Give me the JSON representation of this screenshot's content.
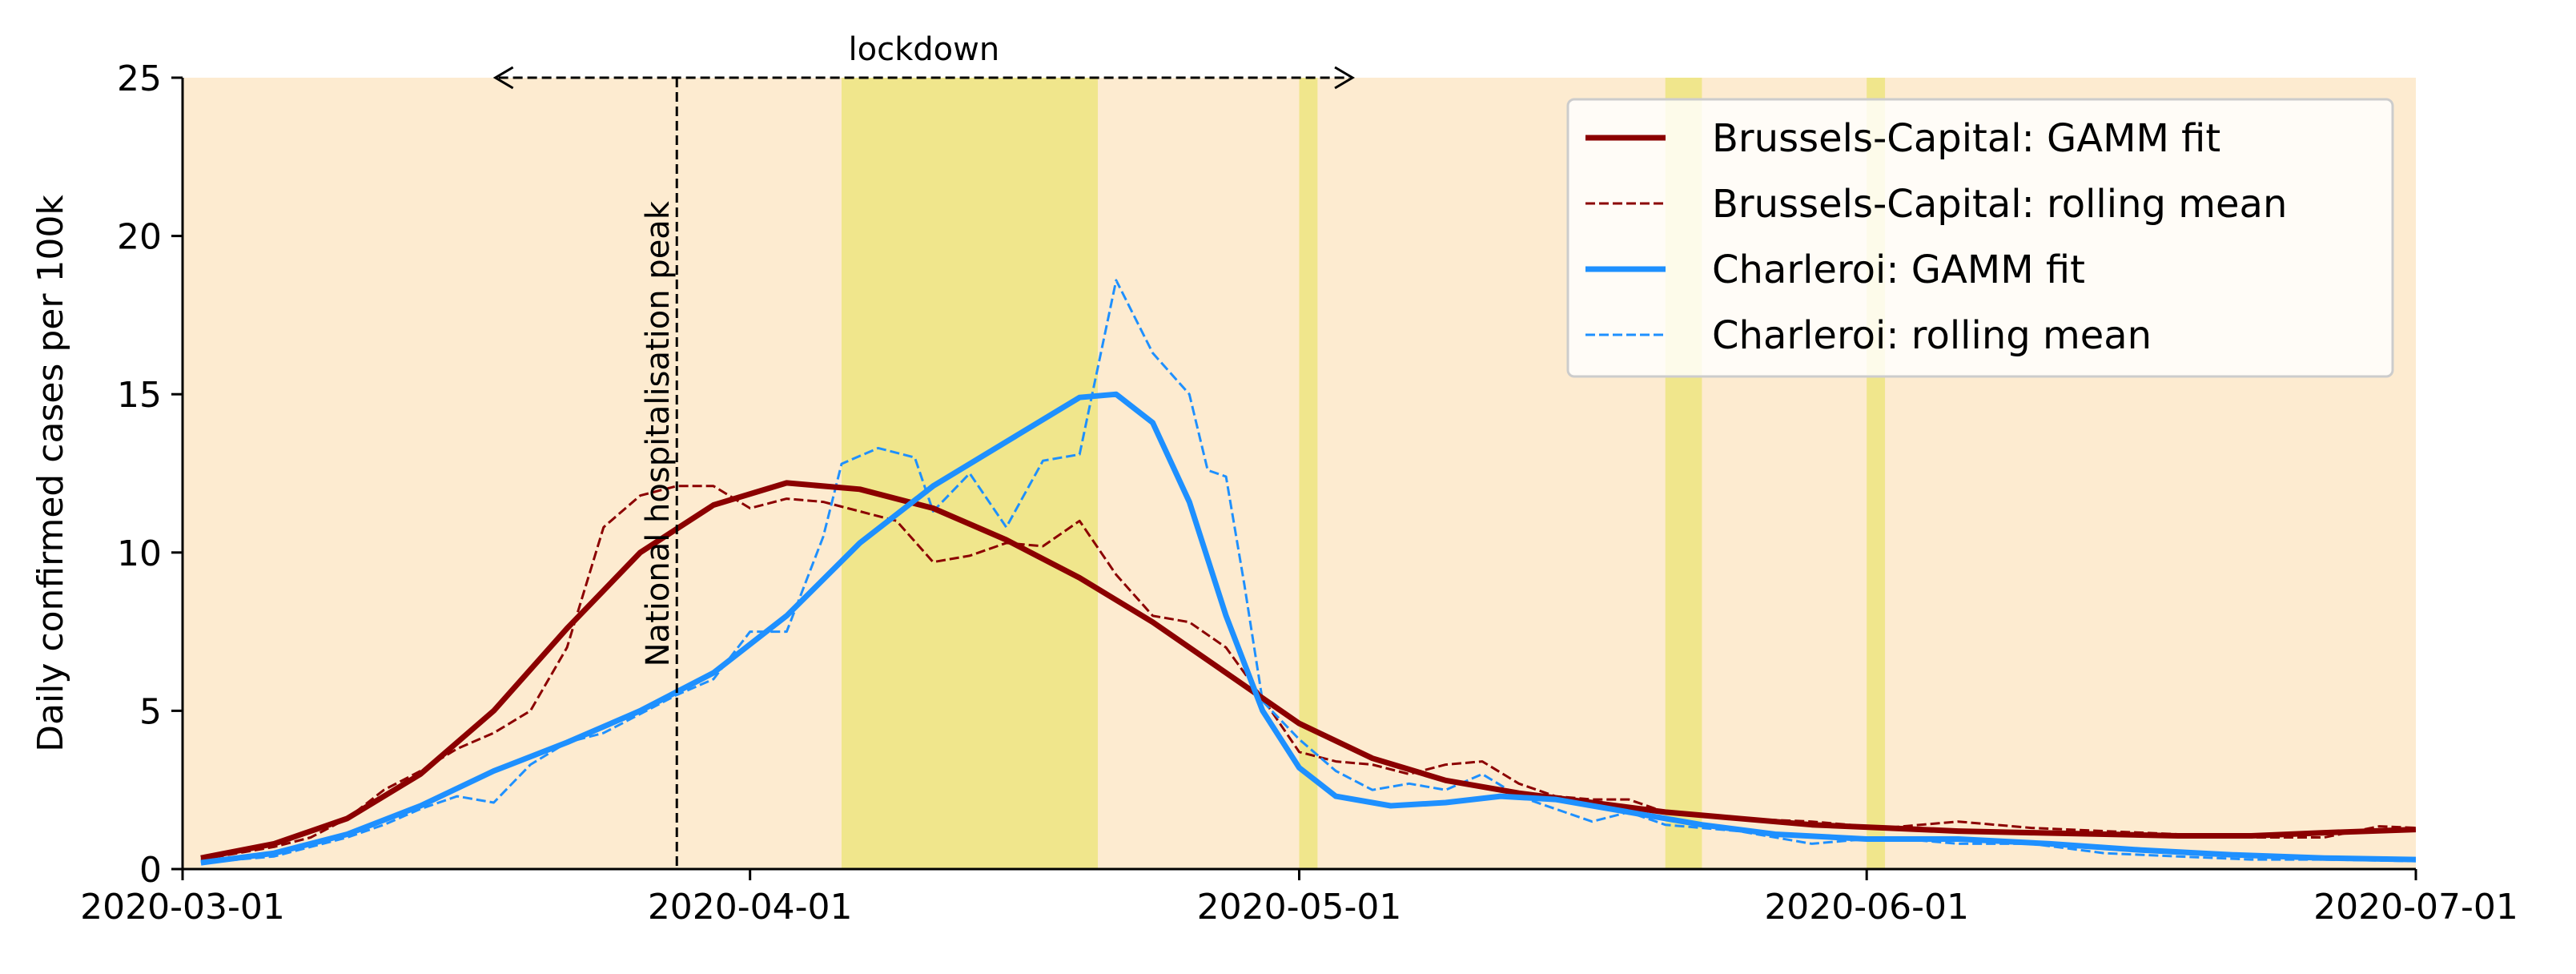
{
  "chart_data": {
    "type": "line",
    "title": "",
    "xlabel": "",
    "ylabel": "Daily confirmed cases per 100k",
    "x_range": [
      "2020-03-01",
      "2020-07-01"
    ],
    "ylim": [
      0,
      25
    ],
    "xticks": [
      "2020-03-01",
      "2020-04-01",
      "2020-05-01",
      "2020-06-01",
      "2020-07-01"
    ],
    "yticks": [
      0,
      5,
      10,
      15,
      20,
      25
    ],
    "grid": false,
    "legend_position": "top-right",
    "background_color": "#fdebd0",
    "highlight_color": "#f0e68c",
    "highlight_periods": [
      [
        "2020-04-06",
        "2020-04-20"
      ],
      [
        "2020-05-01",
        "2020-05-02"
      ],
      [
        "2020-05-21",
        "2020-05-23"
      ],
      [
        "2020-06-01",
        "2020-06-02"
      ]
    ],
    "annotations": {
      "lockdown": {
        "label": "lockdown",
        "start": "2020-03-18",
        "end": "2020-05-04",
        "y": 25
      },
      "hospitalisation_peak": {
        "label": "National hospitalisation peak",
        "date": "2020-03-28"
      }
    },
    "series": [
      {
        "name": "Brussels-Capital: GAMM fit",
        "color": "#8b0000",
        "style": "solid",
        "points": [
          [
            "2020-03-02",
            0.35
          ],
          [
            "2020-03-06",
            0.8
          ],
          [
            "2020-03-10",
            1.6
          ],
          [
            "2020-03-14",
            3.0
          ],
          [
            "2020-03-18",
            5.0
          ],
          [
            "2020-03-22",
            7.6
          ],
          [
            "2020-03-26",
            10.0
          ],
          [
            "2020-03-30",
            11.5
          ],
          [
            "2020-04-03",
            12.2
          ],
          [
            "2020-04-07",
            12.0
          ],
          [
            "2020-04-11",
            11.4
          ],
          [
            "2020-04-15",
            10.4
          ],
          [
            "2020-04-19",
            9.2
          ],
          [
            "2020-04-23",
            7.8
          ],
          [
            "2020-04-27",
            6.2
          ],
          [
            "2020-05-01",
            4.6
          ],
          [
            "2020-05-05",
            3.5
          ],
          [
            "2020-05-09",
            2.8
          ],
          [
            "2020-05-13",
            2.4
          ],
          [
            "2020-05-17",
            2.1
          ],
          [
            "2020-05-21",
            1.8
          ],
          [
            "2020-05-25",
            1.6
          ],
          [
            "2020-05-29",
            1.4
          ],
          [
            "2020-06-02",
            1.3
          ],
          [
            "2020-06-06",
            1.2
          ],
          [
            "2020-06-10",
            1.15
          ],
          [
            "2020-06-14",
            1.1
          ],
          [
            "2020-06-18",
            1.05
          ],
          [
            "2020-06-22",
            1.05
          ],
          [
            "2020-06-26",
            1.15
          ],
          [
            "2020-07-01",
            1.25
          ]
        ]
      },
      {
        "name": "Brussels-Capital: rolling mean",
        "color": "#8b0000",
        "style": "dashed",
        "points": [
          [
            "2020-03-02",
            0.3
          ],
          [
            "2020-03-04",
            0.5
          ],
          [
            "2020-03-06",
            0.7
          ],
          [
            "2020-03-08",
            1.0
          ],
          [
            "2020-03-10",
            1.6
          ],
          [
            "2020-03-12",
            2.5
          ],
          [
            "2020-03-14",
            3.1
          ],
          [
            "2020-03-16",
            3.8
          ],
          [
            "2020-03-18",
            4.3
          ],
          [
            "2020-03-20",
            5.0
          ],
          [
            "2020-03-22",
            7.0
          ],
          [
            "2020-03-24",
            10.8
          ],
          [
            "2020-03-26",
            11.8
          ],
          [
            "2020-03-28",
            12.1
          ],
          [
            "2020-03-30",
            12.1
          ],
          [
            "2020-04-01",
            11.4
          ],
          [
            "2020-04-03",
            11.7
          ],
          [
            "2020-04-05",
            11.6
          ],
          [
            "2020-04-07",
            11.3
          ],
          [
            "2020-04-09",
            11.0
          ],
          [
            "2020-04-11",
            9.7
          ],
          [
            "2020-04-13",
            9.9
          ],
          [
            "2020-04-15",
            10.3
          ],
          [
            "2020-04-17",
            10.2
          ],
          [
            "2020-04-19",
            11.0
          ],
          [
            "2020-04-21",
            9.3
          ],
          [
            "2020-04-23",
            8.0
          ],
          [
            "2020-04-25",
            7.8
          ],
          [
            "2020-04-27",
            7.0
          ],
          [
            "2020-04-29",
            5.4
          ],
          [
            "2020-05-01",
            3.7
          ],
          [
            "2020-05-03",
            3.4
          ],
          [
            "2020-05-05",
            3.3
          ],
          [
            "2020-05-07",
            3.0
          ],
          [
            "2020-05-09",
            3.3
          ],
          [
            "2020-05-11",
            3.4
          ],
          [
            "2020-05-13",
            2.7
          ],
          [
            "2020-05-15",
            2.3
          ],
          [
            "2020-05-17",
            2.2
          ],
          [
            "2020-05-19",
            2.2
          ],
          [
            "2020-05-21",
            1.8
          ],
          [
            "2020-05-25",
            1.6
          ],
          [
            "2020-05-29",
            1.5
          ],
          [
            "2020-06-02",
            1.3
          ],
          [
            "2020-06-06",
            1.5
          ],
          [
            "2020-06-10",
            1.3
          ],
          [
            "2020-06-14",
            1.2
          ],
          [
            "2020-06-18",
            1.1
          ],
          [
            "2020-06-22",
            1.0
          ],
          [
            "2020-06-26",
            1.0
          ],
          [
            "2020-06-29",
            1.35
          ],
          [
            "2020-07-01",
            1.3
          ]
        ]
      },
      {
        "name": "Charleroi: GAMM fit",
        "color": "#1e90ff",
        "style": "solid",
        "points": [
          [
            "2020-03-02",
            0.2
          ],
          [
            "2020-03-06",
            0.5
          ],
          [
            "2020-03-10",
            1.1
          ],
          [
            "2020-03-14",
            2.0
          ],
          [
            "2020-03-18",
            3.1
          ],
          [
            "2020-03-22",
            4.0
          ],
          [
            "2020-03-26",
            5.0
          ],
          [
            "2020-03-30",
            6.2
          ],
          [
            "2020-04-03",
            8.0
          ],
          [
            "2020-04-07",
            10.3
          ],
          [
            "2020-04-11",
            12.1
          ],
          [
            "2020-04-15",
            13.5
          ],
          [
            "2020-04-19",
            14.9
          ],
          [
            "2020-04-21",
            15.0
          ],
          [
            "2020-04-23",
            14.1
          ],
          [
            "2020-04-25",
            11.6
          ],
          [
            "2020-04-27",
            8.0
          ],
          [
            "2020-04-29",
            5.0
          ],
          [
            "2020-05-01",
            3.2
          ],
          [
            "2020-05-03",
            2.3
          ],
          [
            "2020-05-06",
            2.0
          ],
          [
            "2020-05-09",
            2.1
          ],
          [
            "2020-05-12",
            2.3
          ],
          [
            "2020-05-15",
            2.2
          ],
          [
            "2020-05-19",
            1.8
          ],
          [
            "2020-05-23",
            1.4
          ],
          [
            "2020-05-27",
            1.1
          ],
          [
            "2020-06-01",
            0.95
          ],
          [
            "2020-06-06",
            0.95
          ],
          [
            "2020-06-11",
            0.8
          ],
          [
            "2020-06-16",
            0.6
          ],
          [
            "2020-06-21",
            0.45
          ],
          [
            "2020-06-26",
            0.35
          ],
          [
            "2020-07-01",
            0.3
          ]
        ]
      },
      {
        "name": "Charleroi: rolling mean",
        "color": "#1e90ff",
        "style": "dashed",
        "points": [
          [
            "2020-03-02",
            0.2
          ],
          [
            "2020-03-04",
            0.3
          ],
          [
            "2020-03-06",
            0.4
          ],
          [
            "2020-03-08",
            0.7
          ],
          [
            "2020-03-10",
            1.0
          ],
          [
            "2020-03-12",
            1.4
          ],
          [
            "2020-03-14",
            1.9
          ],
          [
            "2020-03-16",
            2.3
          ],
          [
            "2020-03-18",
            2.1
          ],
          [
            "2020-03-20",
            3.3
          ],
          [
            "2020-03-22",
            4.0
          ],
          [
            "2020-03-24",
            4.3
          ],
          [
            "2020-03-26",
            4.9
          ],
          [
            "2020-03-28",
            5.5
          ],
          [
            "2020-03-30",
            6.0
          ],
          [
            "2020-04-01",
            7.5
          ],
          [
            "2020-04-03",
            7.5
          ],
          [
            "2020-04-05",
            10.5
          ],
          [
            "2020-04-06",
            12.8
          ],
          [
            "2020-04-08",
            13.3
          ],
          [
            "2020-04-10",
            13.0
          ],
          [
            "2020-04-11",
            11.3
          ],
          [
            "2020-04-13",
            12.5
          ],
          [
            "2020-04-15",
            10.8
          ],
          [
            "2020-04-17",
            12.9
          ],
          [
            "2020-04-19",
            13.1
          ],
          [
            "2020-04-21",
            18.6
          ],
          [
            "2020-04-23",
            16.3
          ],
          [
            "2020-04-25",
            15.0
          ],
          [
            "2020-04-26",
            12.6
          ],
          [
            "2020-04-27",
            12.4
          ],
          [
            "2020-04-28",
            9.0
          ],
          [
            "2020-04-29",
            5.3
          ],
          [
            "2020-05-01",
            4.1
          ],
          [
            "2020-05-03",
            3.1
          ],
          [
            "2020-05-05",
            2.5
          ],
          [
            "2020-05-07",
            2.7
          ],
          [
            "2020-05-09",
            2.5
          ],
          [
            "2020-05-11",
            3.0
          ],
          [
            "2020-05-13",
            2.3
          ],
          [
            "2020-05-15",
            1.9
          ],
          [
            "2020-05-17",
            1.5
          ],
          [
            "2020-05-19",
            1.8
          ],
          [
            "2020-05-21",
            1.4
          ],
          [
            "2020-05-25",
            1.2
          ],
          [
            "2020-05-29",
            0.8
          ],
          [
            "2020-06-02",
            1.0
          ],
          [
            "2020-06-06",
            0.8
          ],
          [
            "2020-06-10",
            0.8
          ],
          [
            "2020-06-14",
            0.5
          ],
          [
            "2020-06-18",
            0.4
          ],
          [
            "2020-06-22",
            0.3
          ],
          [
            "2020-06-26",
            0.3
          ],
          [
            "2020-07-01",
            0.25
          ]
        ]
      }
    ]
  }
}
